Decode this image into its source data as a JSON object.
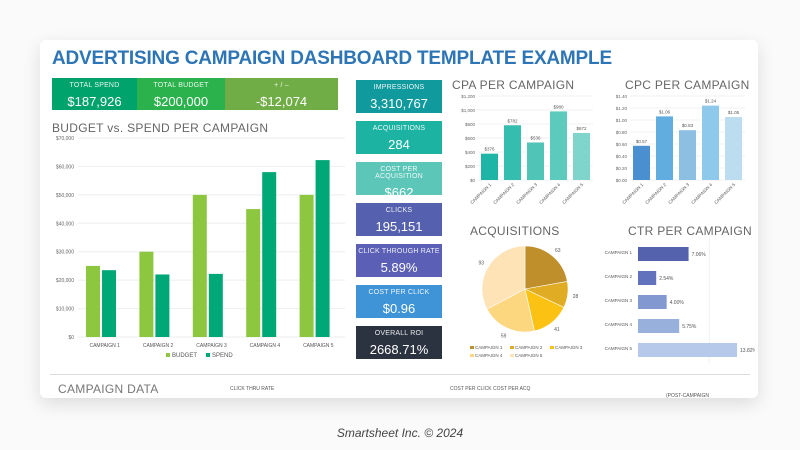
{
  "title": "ADVERTISING CAMPAIGN DASHBOARD TEMPLATE EXAMPLE",
  "summary": [
    {
      "label": "TOTAL SPEND",
      "value": "$187,926",
      "color": "#00a36c"
    },
    {
      "label": "TOTAL BUDGET",
      "value": "$200,000",
      "color": "#2bb24c"
    },
    {
      "label": "+ / –",
      "value": "-$12,074",
      "color": "#70ad47"
    }
  ],
  "metrics": [
    {
      "label": "IMPRESSIONS",
      "value": "3,310,767",
      "color": "#119a9e"
    },
    {
      "label": "ACQUISITIONS",
      "value": "284",
      "color": "#1db3a3"
    },
    {
      "label": "COST PER ACQUISITION",
      "value": "$662",
      "color": "#5cc6b9"
    },
    {
      "label": "CLICKS",
      "value": "195,151",
      "color": "#5561ae"
    },
    {
      "label": "CLICK THROUGH RATE",
      "value": "5.89%",
      "color": "#5b5fb6"
    },
    {
      "label": "COST PER CLICK",
      "value": "$0.96",
      "color": "#3f94d7"
    },
    {
      "label": "OVERALL ROI",
      "value": "2668.71%",
      "color": "#2b3240"
    }
  ],
  "chart_data": [
    {
      "type": "bar",
      "title": "BUDGET vs. SPEND PER CAMPAIGN",
      "categories": [
        "CAMPAIGN 1",
        "CAMPAIGN 2",
        "CAMPAIGN 3",
        "CAMPAIGN 4",
        "CAMPAIGN 5"
      ],
      "series": [
        {
          "name": "BUDGET",
          "values": [
            25000,
            30000,
            50000,
            45000,
            50000
          ],
          "color": "#8dc63f"
        },
        {
          "name": "SPEND",
          "values": [
            23500,
            22000,
            22200,
            58000,
            62226
          ],
          "color": "#00a878"
        }
      ],
      "ylim": [
        0,
        70000
      ],
      "yticks": [
        "$0",
        "$10,000",
        "$20,000",
        "$30,000",
        "$40,000",
        "$50,000",
        "$60,000",
        "$70,000"
      ],
      "grid": true,
      "legend": "bottom"
    },
    {
      "type": "bar",
      "title": "CPA PER CAMPAIGN",
      "categories": [
        "CAMPAIGN 1",
        "CAMPAIGN 2",
        "CAMPAIGN 3",
        "CAMPAIGN 4",
        "CAMPAIGN 5"
      ],
      "values": [
        376,
        782,
        536,
        980,
        672
      ],
      "labels": [
        "$376",
        "$782",
        "$536",
        "$980",
        "$672"
      ],
      "colors": [
        "#1fb5a6",
        "#35bdaf",
        "#4fc4b7",
        "#5ccbbd",
        "#7fd5cb"
      ],
      "ylim": [
        0,
        1200
      ],
      "yticks": [
        "$0",
        "$200",
        "$400",
        "$600",
        "$800",
        "$1,000",
        "$1,200"
      ]
    },
    {
      "type": "bar",
      "title": "CPC PER CAMPAIGN",
      "categories": [
        "CAMPAIGN 1",
        "CAMPAIGN 2",
        "CAMPAIGN 3",
        "CAMPAIGN 4",
        "CAMPAIGN 5"
      ],
      "values": [
        0.57,
        1.06,
        0.83,
        1.24,
        1.05
      ],
      "labels": [
        "$0.57",
        "$1.06",
        "$0.83",
        "$1.24",
        "$1.05"
      ],
      "colors": [
        "#4a90d0",
        "#62ade0",
        "#8dbfe3",
        "#8ec9ec",
        "#bcdcef"
      ],
      "ylim": [
        0,
        1.4
      ],
      "yticks": [
        "$0.00",
        "$0.20",
        "$0.40",
        "$0.60",
        "$0.80",
        "$1.00",
        "$1.20",
        "$1.40"
      ]
    },
    {
      "type": "pie",
      "title": "ACQUISITIONS",
      "categories": [
        "CAMPAIGN 1",
        "CAMPAIGN 2",
        "CAMPAIGN 3",
        "CAMPAIGN 4",
        "CAMPAIGN 5"
      ],
      "values": [
        63,
        28,
        41,
        59,
        93
      ],
      "colors": [
        "#bf8f2c",
        "#e0ac23",
        "#fbc213",
        "#fdd780",
        "#fde3b6"
      ],
      "legend": "bottom"
    },
    {
      "type": "bar",
      "orientation": "horizontal",
      "title": "CTR PER CAMPAIGN",
      "categories": [
        "CAMPAIGN 1",
        "CAMPAIGN 2",
        "CAMPAIGN 3",
        "CAMPAIGN 4",
        "CAMPAIGN 5"
      ],
      "values": [
        7.06,
        2.54,
        4.0,
        5.75,
        13.82
      ],
      "labels": [
        "7.06%",
        "2.54%",
        "4.00%",
        "5.75%",
        "13.82%"
      ],
      "colors": [
        "#5461ad",
        "#6372bd",
        "#8198d0",
        "#98b0dc",
        "#b7c9ea"
      ]
    }
  ],
  "campaign_data": {
    "title": "CAMPAIGN DATA",
    "headers": [
      "CLICK THRU RATE",
      "COST PER CLICK",
      "COST PER ACQ",
      "(POST-CAMPAIGN"
    ]
  },
  "footer": "Smartsheet Inc. © 2024"
}
